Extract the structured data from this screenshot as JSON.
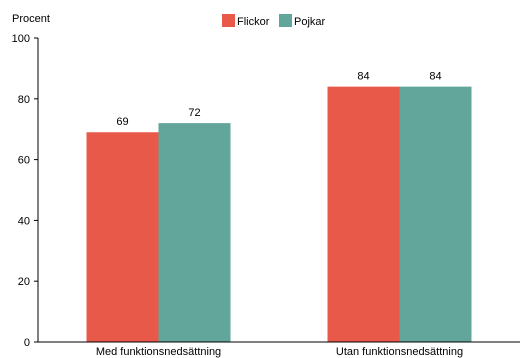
{
  "chart_data": {
    "type": "bar",
    "ylabel": "Procent",
    "xlabel": "",
    "title": "",
    "ylim": [
      0,
      100
    ],
    "yticks": [
      0,
      20,
      40,
      60,
      80,
      100
    ],
    "grid": false,
    "legend_position": "top-center",
    "categories": [
      "Med funktionsnedsättning",
      "Utan funktionsnedsättning"
    ],
    "series": [
      {
        "name": "Flickor",
        "color": "#E8594A",
        "values": [
          69,
          84
        ]
      },
      {
        "name": "Pojkar",
        "color": "#62A59A",
        "values": [
          72,
          84
        ]
      }
    ]
  }
}
